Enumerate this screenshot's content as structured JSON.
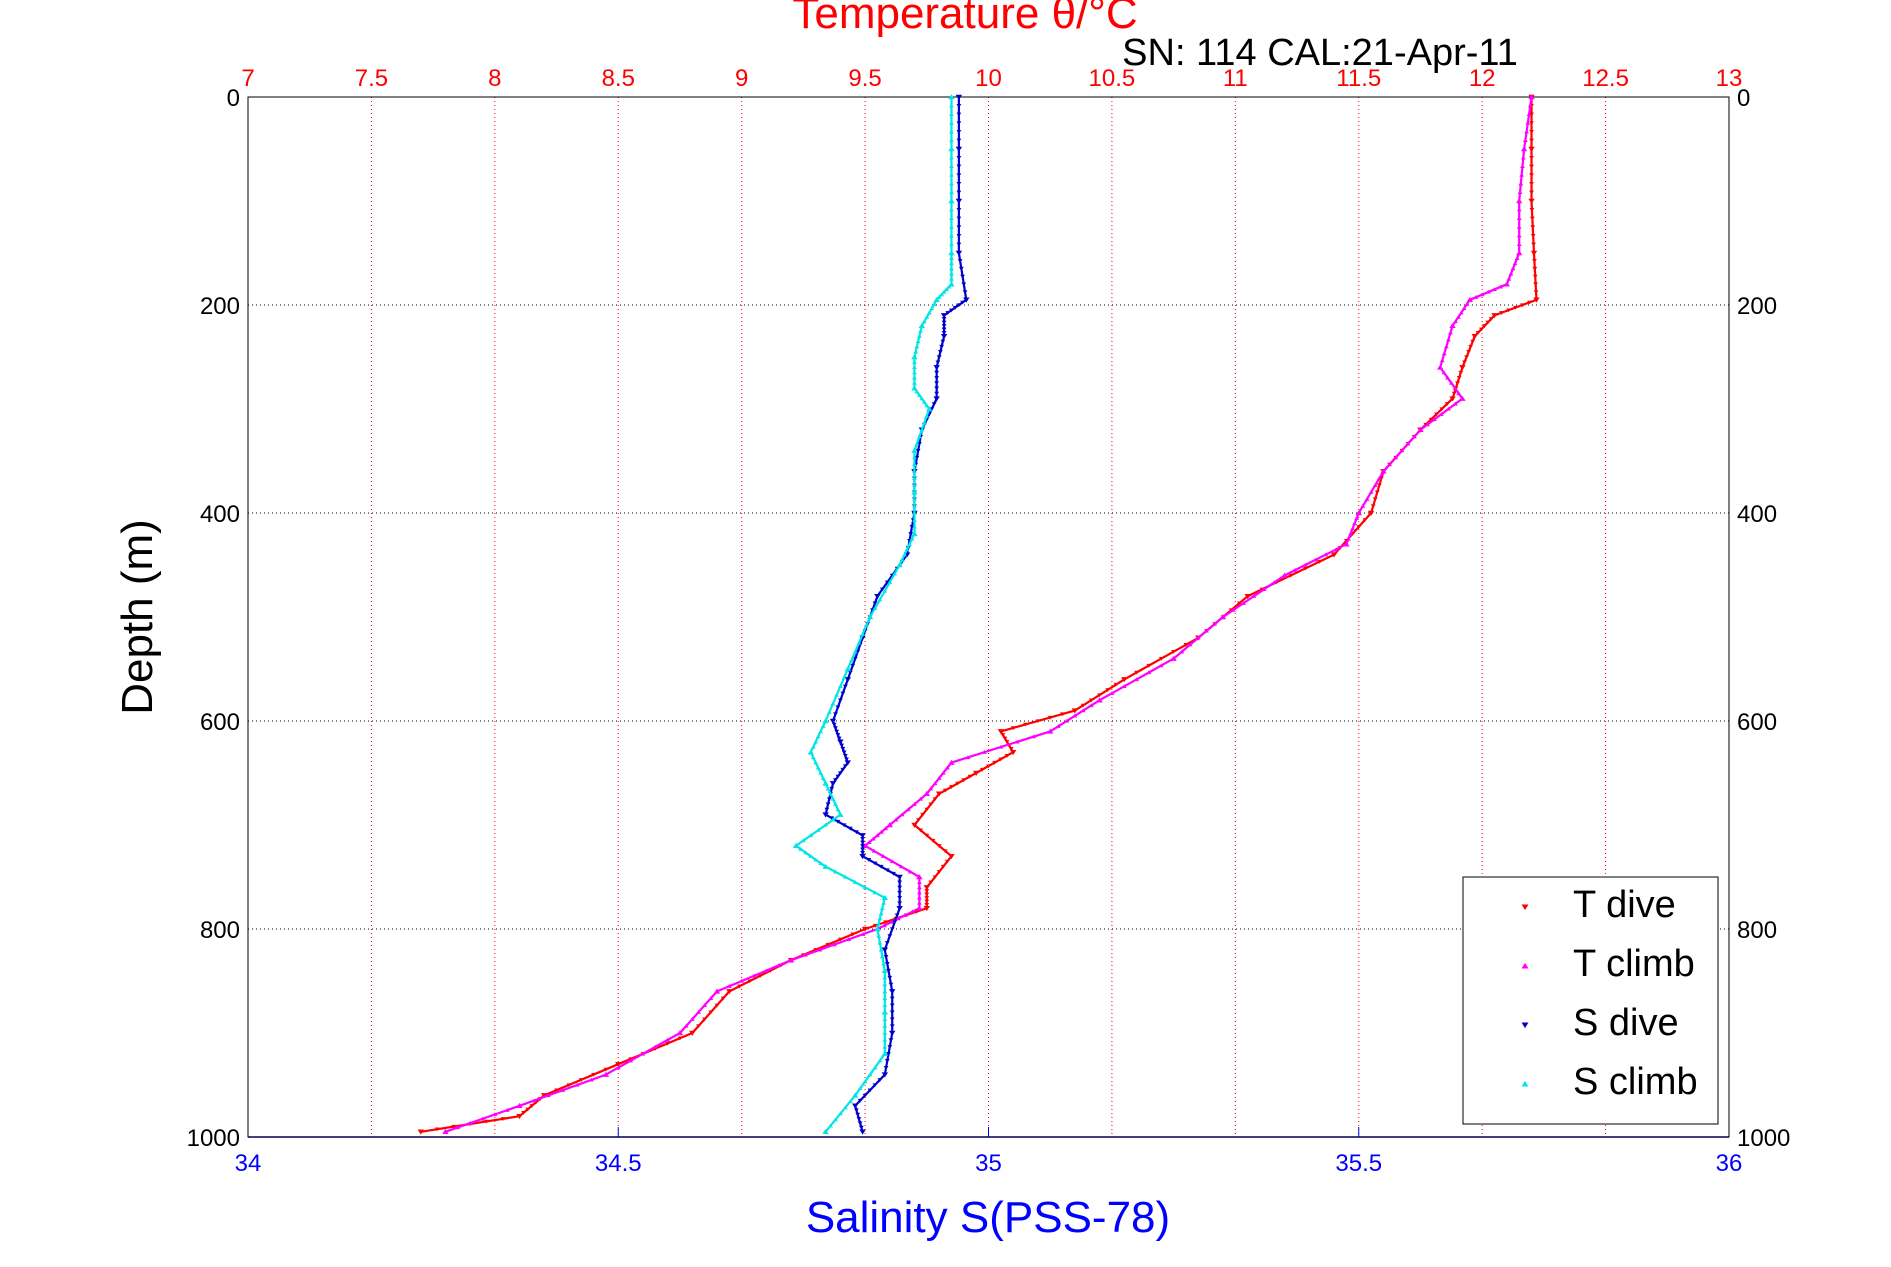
{
  "chart_data": {
    "type": "scatter",
    "title": "Temperature θ/°C",
    "subtitle": "SN: 114  CAL:21-Apr-11",
    "ylabel": "Depth (m)",
    "xlabel_bottom": "Salinity S(PSS-78)",
    "xlabel_top": "Temperature θ/°C",
    "ylim": [
      0,
      1000
    ],
    "y_reversed": true,
    "yticks": [
      "0",
      "200",
      "400",
      "600",
      "800",
      "1000"
    ],
    "xlim_temperature": [
      7,
      13
    ],
    "xticks_temperature": [
      "7",
      "7.5",
      "8",
      "8.5",
      "9",
      "9.5",
      "10",
      "10.5",
      "11",
      "11.5",
      "12",
      "12.5",
      "13"
    ],
    "xlim_salinity": [
      34,
      36
    ],
    "xticks_salinity": [
      "34",
      "34.5",
      "35",
      "35.5",
      "36"
    ],
    "grid": true,
    "legend_position": "bottom-right",
    "colors": {
      "temperature_axis": "#ff0000",
      "salinity_axis": "#0000ff",
      "t_dive": "#ff0000",
      "t_climb": "#ff00ff",
      "s_dive": "#0000cc",
      "s_climb": "#00e5e5"
    },
    "series": [
      {
        "name": "T dive",
        "axis": "temperature",
        "marker": "down-triangle",
        "depth": [
          0,
          50,
          100,
          150,
          195,
          210,
          230,
          260,
          290,
          320,
          360,
          400,
          440,
          480,
          520,
          560,
          590,
          610,
          630,
          650,
          670,
          700,
          730,
          760,
          780,
          800,
          830,
          860,
          900,
          930,
          960,
          980,
          995
        ],
        "values": [
          12.2,
          12.2,
          12.2,
          12.21,
          12.22,
          12.05,
          11.97,
          11.92,
          11.88,
          11.75,
          11.6,
          11.55,
          11.4,
          11.05,
          10.85,
          10.55,
          10.35,
          10.05,
          10.1,
          9.95,
          9.8,
          9.7,
          9.85,
          9.75,
          9.75,
          9.5,
          9.2,
          8.95,
          8.8,
          8.5,
          8.2,
          8.1,
          7.7
        ]
      },
      {
        "name": "T climb",
        "axis": "temperature",
        "marker": "up-triangle",
        "depth": [
          0,
          50,
          100,
          150,
          180,
          195,
          220,
          260,
          290,
          320,
          360,
          400,
          430,
          460,
          500,
          540,
          580,
          610,
          640,
          670,
          700,
          720,
          750,
          780,
          800,
          830,
          860,
          900,
          940,
          970,
          995
        ],
        "values": [
          12.2,
          12.17,
          12.15,
          12.15,
          12.1,
          11.95,
          11.88,
          11.83,
          11.92,
          11.75,
          11.6,
          11.5,
          11.45,
          11.2,
          10.95,
          10.75,
          10.45,
          10.25,
          9.85,
          9.75,
          9.6,
          9.5,
          9.72,
          9.72,
          9.55,
          9.2,
          8.9,
          8.75,
          8.45,
          8.1,
          7.8
        ]
      },
      {
        "name": "S dive",
        "axis": "salinity",
        "marker": "down-triangle",
        "depth": [
          0,
          50,
          100,
          150,
          195,
          210,
          230,
          260,
          290,
          320,
          360,
          400,
          440,
          480,
          520,
          560,
          600,
          620,
          640,
          660,
          690,
          710,
          730,
          750,
          780,
          820,
          860,
          900,
          940,
          970,
          995
        ],
        "values": [
          34.96,
          34.96,
          34.96,
          34.96,
          34.97,
          34.94,
          34.94,
          34.93,
          34.93,
          34.91,
          34.9,
          34.9,
          34.89,
          34.85,
          34.83,
          34.81,
          34.79,
          34.8,
          34.81,
          34.79,
          34.78,
          34.83,
          34.83,
          34.88,
          34.88,
          34.86,
          34.87,
          34.87,
          34.86,
          34.82,
          34.83
        ]
      },
      {
        "name": "S climb",
        "axis": "salinity",
        "marker": "up-triangle",
        "depth": [
          0,
          50,
          100,
          150,
          180,
          195,
          220,
          250,
          280,
          300,
          340,
          380,
          420,
          450,
          500,
          550,
          600,
          630,
          660,
          690,
          720,
          740,
          770,
          800,
          840,
          880,
          920,
          960,
          995
        ],
        "values": [
          34.95,
          34.95,
          34.95,
          34.95,
          34.95,
          34.93,
          34.91,
          34.9,
          34.9,
          34.92,
          34.9,
          34.9,
          34.9,
          34.88,
          34.84,
          34.81,
          34.78,
          34.76,
          34.78,
          34.8,
          34.74,
          34.78,
          34.86,
          34.85,
          34.86,
          34.86,
          34.86,
          34.82,
          34.78
        ]
      }
    ]
  }
}
